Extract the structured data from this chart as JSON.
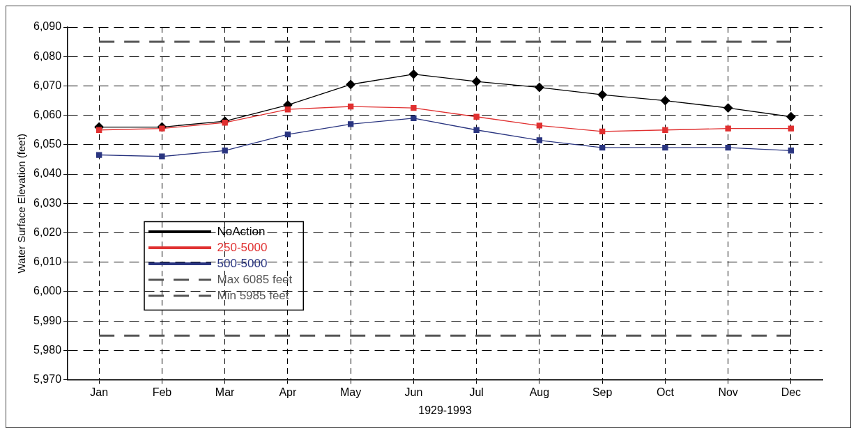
{
  "chart_data": {
    "type": "line",
    "xlabel": "1929-1993",
    "ylabel": "Water Surface Elevation (feet)",
    "categories": [
      "Jan",
      "Feb",
      "Mar",
      "Apr",
      "May",
      "Jun",
      "Jul",
      "Aug",
      "Sep",
      "Oct",
      "Nov",
      "Dec"
    ],
    "series": [
      {
        "name": "NoAction",
        "color": "#000000",
        "marker": "diamond",
        "values": [
          6056,
          6056,
          6058,
          6063.5,
          6070.5,
          6074,
          6071.5,
          6069.5,
          6067,
          6065,
          6062.5,
          6059.5
        ]
      },
      {
        "name": "250-5000",
        "color": "#e03030",
        "marker": "square",
        "values": [
          6055,
          6055.5,
          6057.5,
          6062,
          6063,
          6062.5,
          6059.5,
          6056.5,
          6054.5,
          6055,
          6055.5,
          6055.5
        ]
      },
      {
        "name": "500-5000",
        "color": "#2a3580",
        "marker": "square",
        "values": [
          6046.5,
          6046,
          6048,
          6053.5,
          6057,
          6059,
          6055,
          6051.5,
          6049,
          6049,
          6049,
          6048
        ]
      },
      {
        "name": "Max 6085 feet",
        "color": "#555555",
        "marker": "none",
        "line_style": "dashed",
        "values": [
          6085,
          6085,
          6085,
          6085,
          6085,
          6085,
          6085,
          6085,
          6085,
          6085,
          6085,
          6085
        ]
      },
      {
        "name": "Min 5985 feet",
        "color": "#555555",
        "marker": "none",
        "line_style": "dashed",
        "values": [
          5985,
          5985,
          5985,
          5985,
          5985,
          5985,
          5985,
          5985,
          5985,
          5985,
          5985,
          5985
        ]
      }
    ],
    "ylim": [
      5970,
      6090
    ],
    "yticks": [
      {
        "value": 5970,
        "label": "5,970"
      },
      {
        "value": 5980,
        "label": "5,980"
      },
      {
        "value": 5990,
        "label": "5,990"
      },
      {
        "value": 6000,
        "label": "6,000"
      },
      {
        "value": 6010,
        "label": "6,010"
      },
      {
        "value": 6020,
        "label": "6,020"
      },
      {
        "value": 6030,
        "label": "6,030"
      },
      {
        "value": 6040,
        "label": "6,040"
      },
      {
        "value": 6050,
        "label": "6,050"
      },
      {
        "value": 6060,
        "label": "6,060"
      },
      {
        "value": 6070,
        "label": "6,070"
      },
      {
        "value": 6080,
        "label": "6,080"
      },
      {
        "value": 6090,
        "label": "6,090"
      }
    ],
    "grid": true,
    "legend": "bottom left"
  }
}
